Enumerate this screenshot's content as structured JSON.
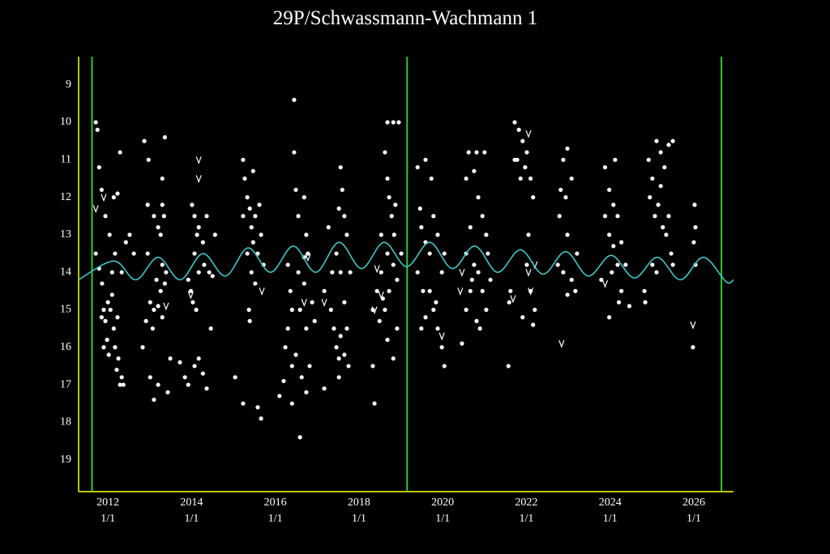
{
  "chart_data": {
    "type": "scatter",
    "title": "29P/Schwassmann-Wachmann 1",
    "xlim": [
      2011.3,
      2026.95
    ],
    "xticks": [
      {
        "value": 2012,
        "label": "2012\n1/1"
      },
      {
        "value": 2014,
        "label": "2014\n1/1"
      },
      {
        "value": 2016,
        "label": "2016\n1/1"
      },
      {
        "value": 2018,
        "label": "2018\n1/1"
      },
      {
        "value": 2020,
        "label": "2020\n1/1"
      },
      {
        "value": 2022,
        "label": "2022\n1/1"
      },
      {
        "value": 2024,
        "label": "2024\n1/1"
      },
      {
        "value": 2026,
        "label": "2026\n1/1"
      }
    ],
    "ylim": [
      8.25,
      19.85
    ],
    "y_inverted": true,
    "yticks": [
      9,
      10,
      11,
      12,
      13,
      14,
      15,
      16,
      17,
      18,
      19
    ],
    "grid": false,
    "axis_color": "#b8c800",
    "vlines": [
      2011.62,
      2019.15,
      2026.66
    ],
    "vline_color": "#2ec82e",
    "series": [
      {
        "marker": "dot",
        "color": "#ffffff",
        "x": [
          2011.71,
          2011.75,
          2011.79,
          2011.85,
          2011.71,
          2011.79,
          2011.86,
          2011.9,
          2011.94,
          2011.98,
          2012.02,
          2012.06,
          2012.1,
          2012.14,
          2012.17,
          2012.21,
          2012.25,
          2012.29,
          2012.33,
          2012.37,
          2011.94,
          2012.04,
          2012.14,
          2012.23,
          2012.29,
          2012.17,
          2012.33,
          2012.43,
          2012.1,
          2012.0,
          2011.9,
          2012.23,
          2011.85,
          2012.52,
          2012.62,
          2012.87,
          2012.97,
          2012.95,
          2013.1,
          2013.2,
          2013.3,
          2013.34,
          2013.26,
          2013.3,
          2013.36,
          2013.01,
          2013.07,
          2012.91,
          2012.83,
          2013.1,
          2013.2,
          2013.3,
          2013.39,
          2013.36,
          2013.3,
          2013.01,
          2013.1,
          2013.2,
          2013.43,
          2013.49,
          2013.26,
          2013.16,
          2012.95,
          2014.01,
          2014.07,
          2014.13,
          2014.07,
          2014.17,
          2014.27,
          2014.36,
          2014.42,
          2013.98,
          2014.03,
          2014.11,
          2013.92,
          2013.84,
          2013.92,
          2014.07,
          2014.17,
          2014.27,
          2014.36,
          2014.46,
          2014.56,
          2014.5,
          2014.17,
          2014.3,
          2013.72,
          2015.23,
          2015.27,
          2015.33,
          2015.39,
          2015.43,
          2015.47,
          2015.52,
          2015.58,
          2015.62,
          2015.66,
          2015.23,
          2015.33,
          2015.43,
          2015.39,
          2015.52,
          2015.58,
          2015.66,
          2015.23,
          2015.04,
          2015.72,
          2015.47,
          2015.37,
          2016.45,
          2016.45,
          2016.49,
          2016.55,
          2016.69,
          2016.74,
          2016.78,
          2016.3,
          2016.36,
          2016.4,
          2016.3,
          2016.24,
          2016.4,
          2016.49,
          2016.59,
          2016.69,
          2016.74,
          2016.63,
          2016.74,
          2016.82,
          2016.88,
          2016.94,
          2016.59,
          2016.4,
          2016.2,
          2016.1,
          2017.17,
          2016.55,
          2016.69,
          2017.56,
          2017.6,
          2017.65,
          2017.71,
          2017.52,
          2017.46,
          2017.36,
          2017.33,
          2017.4,
          2017.46,
          2017.52,
          2017.56,
          2017.65,
          2017.71,
          2017.75,
          2017.27,
          2017.17,
          2017.56,
          2017.79,
          2017.52,
          2017.65,
          2018.68,
          2018.82,
          2018.95,
          2018.62,
          2018.68,
          2018.72,
          2018.78,
          2018.84,
          2018.87,
          2018.68,
          2018.53,
          2018.43,
          2018.33,
          2018.49,
          2018.62,
          2018.72,
          2018.82,
          2018.91,
          2018.82,
          2018.33,
          2018.37,
          2018.53,
          2019.01,
          2018.91,
          2018.68,
          2018.57,
          2019.4,
          2019.59,
          2019.46,
          2019.49,
          2019.59,
          2019.69,
          2019.78,
          2019.88,
          2019.98,
          2019.69,
          2019.78,
          2019.49,
          2019.59,
          2019.88,
          2019.98,
          2020.04,
          2019.4,
          2019.53,
          2019.84,
          2019.73,
          2020.04,
          2020.62,
          2020.81,
          2021.0,
          2020.56,
          2020.75,
          2020.85,
          2020.95,
          2021.04,
          2020.66,
          2020.56,
          2020.75,
          2020.85,
          2020.95,
          2021.04,
          2020.66,
          2020.56,
          2020.81,
          2020.89,
          2021.14,
          2020.46,
          2021.08,
          2020.7,
          2021.72,
          2021.82,
          2021.91,
          2022.01,
          2021.78,
          2021.86,
          2021.97,
          2022.1,
          2022.16,
          2021.72,
          2022.01,
          2022.1,
          2021.59,
          2021.62,
          2021.91,
          2022.2,
          2022.16,
          2021.57,
          2022.05,
          2022.88,
          2022.98,
          2023.08,
          2022.94,
          2022.79,
          2022.98,
          2022.75,
          2022.88,
          2023.08,
          2023.17,
          2023.21,
          2022.98,
          2022.82,
          2023.88,
          2023.98,
          2024.08,
          2024.18,
          2023.88,
          2023.98,
          2024.08,
          2024.18,
          2024.27,
          2024.37,
          2024.04,
          2023.79,
          2024.27,
          2023.98,
          2024.21,
          2024.12,
          2024.46,
          2024.92,
          2025.01,
          2025.11,
          2025.21,
          2025.3,
          2025.4,
          2025.5,
          2024.95,
          2025.07,
          2025.15,
          2025.26,
          2025.34,
          2025.46,
          2025.01,
          2025.11,
          2025.4,
          2025.5,
          2024.82,
          2024.84,
          2025.21,
          2026.02,
          2026.04,
          2026.0,
          2025.98,
          2026.04
        ],
        "values": [
          10.0,
          10.2,
          11.2,
          11.8,
          13.5,
          13.9,
          14.3,
          15.0,
          15.3,
          15.8,
          16.2,
          15.0,
          14.6,
          15.5,
          16.0,
          16.6,
          16.3,
          17.0,
          16.8,
          17.0,
          12.5,
          13.0,
          12.0,
          11.9,
          10.8,
          13.5,
          14.0,
          13.2,
          14.0,
          14.8,
          16.0,
          15.2,
          15.2,
          13.0,
          13.5,
          10.5,
          11.0,
          12.2,
          12.5,
          12.8,
          12.2,
          12.5,
          13.0,
          13.8,
          14.3,
          14.8,
          15.5,
          15.3,
          16.0,
          15.0,
          14.9,
          15.2,
          14.0,
          10.4,
          11.5,
          16.8,
          17.4,
          17.0,
          17.2,
          16.3,
          14.5,
          14.2,
          13.5,
          12.2,
          12.5,
          13.0,
          13.5,
          12.8,
          13.2,
          12.5,
          14.0,
          14.5,
          14.8,
          15.0,
          14.2,
          16.8,
          17.0,
          16.5,
          16.3,
          16.7,
          17.1,
          15.5,
          13.0,
          14.1,
          14.0,
          13.8,
          16.4,
          11.0,
          11.5,
          12.0,
          12.3,
          12.8,
          13.2,
          12.5,
          13.5,
          12.2,
          13.0,
          12.5,
          13.5,
          14.0,
          15.3,
          14.3,
          17.6,
          17.9,
          17.5,
          16.8,
          13.8,
          11.3,
          15.0,
          9.4,
          10.8,
          11.8,
          12.5,
          12.0,
          13.0,
          13.5,
          13.8,
          14.5,
          15.0,
          15.5,
          16.0,
          16.5,
          16.2,
          15.0,
          14.3,
          15.5,
          16.8,
          17.2,
          16.5,
          14.8,
          15.3,
          18.4,
          17.5,
          16.9,
          17.3,
          17.1,
          14.0,
          13.6,
          11.2,
          11.8,
          12.5,
          13.0,
          12.3,
          13.5,
          14.0,
          15.0,
          15.5,
          16.0,
          16.3,
          15.7,
          14.8,
          15.5,
          16.5,
          12.8,
          14.5,
          14.0,
          14.0,
          16.8,
          16.2,
          10.0,
          10.0,
          10.0,
          10.8,
          11.5,
          12.0,
          12.5,
          13.0,
          12.2,
          13.5,
          14.0,
          14.5,
          15.0,
          15.3,
          15.0,
          14.5,
          13.8,
          15.5,
          16.3,
          16.5,
          17.5,
          13.0,
          13.5,
          14.2,
          15.8,
          14.7,
          11.2,
          11.0,
          12.3,
          12.8,
          13.2,
          13.5,
          12.5,
          13.0,
          14.0,
          14.5,
          15.0,
          15.5,
          15.2,
          15.5,
          16.0,
          16.5,
          14.0,
          14.5,
          14.8,
          11.5,
          13.5,
          10.8,
          10.8,
          10.8,
          11.5,
          11.3,
          12.0,
          12.5,
          13.0,
          12.8,
          13.5,
          13.8,
          14.0,
          14.5,
          15.0,
          14.5,
          15.0,
          15.3,
          15.5,
          14.2,
          15.9,
          13.5,
          14.2,
          10.0,
          10.2,
          10.5,
          10.8,
          11.0,
          11.5,
          11.2,
          11.5,
          12.0,
          11.0,
          13.8,
          14.5,
          14.8,
          14.5,
          15.2,
          15.0,
          15.4,
          16.5,
          13.0,
          11.0,
          10.7,
          11.5,
          12.0,
          12.5,
          13.0,
          13.8,
          14.0,
          14.2,
          14.5,
          13.5,
          14.6,
          11.8,
          11.2,
          11.8,
          12.2,
          12.5,
          12.5,
          13.0,
          13.3,
          13.8,
          13.2,
          13.8,
          14.0,
          14.2,
          14.5,
          15.2,
          14.8,
          11.0,
          14.9,
          11.0,
          11.5,
          10.5,
          10.8,
          11.2,
          10.6,
          10.5,
          12.0,
          12.5,
          12.2,
          12.8,
          13.0,
          13.5,
          13.8,
          14.0,
          12.5,
          13.8,
          14.5,
          14.8,
          11.7,
          12.2,
          12.8,
          13.2,
          16.0,
          13.8
        ]
      },
      {
        "marker": "v",
        "color": "#ffffff",
        "x": [
          2011.9,
          2011.71,
          2013.39,
          2014.17,
          2014.17,
          2013.98,
          2015.68,
          2016.69,
          2016.78,
          2017.17,
          2018.37,
          2018.53,
          2018.43,
          2019.98,
          2020.46,
          2020.42,
          2021.68,
          2022.05,
          2022.1,
          2022.2,
          2022.05,
          2022.84,
          2023.88,
          2025.98
        ],
        "values": [
          12.0,
          12.3,
          14.9,
          11.0,
          11.5,
          14.6,
          14.5,
          14.8,
          13.6,
          14.8,
          15.0,
          14.6,
          13.9,
          15.7,
          14.0,
          14.5,
          14.7,
          14.0,
          14.5,
          13.8,
          10.3,
          15.9,
          14.3,
          15.4
        ]
      },
      {
        "marker": "line",
        "color": "#3cc8c8",
        "x": [
          2011.3,
          2012.14,
          2012.67,
          2013.2,
          2013.73,
          2014.27,
          2014.81,
          2015.35,
          2015.89,
          2016.43,
          2016.97,
          2017.52,
          2018.06,
          2018.6,
          2019.14,
          2019.69,
          2020.23,
          2020.77,
          2021.31,
          2021.86,
          2022.4,
          2022.94,
          2023.48,
          2024.03,
          2024.58,
          2025.13,
          2025.68,
          2026.23,
          2026.77,
          2026.95
        ],
        "values": [
          14.2,
          13.7,
          14.2,
          13.6,
          14.2,
          13.5,
          14.1,
          13.35,
          14.0,
          13.3,
          14.0,
          13.2,
          13.9,
          13.2,
          13.85,
          13.2,
          13.9,
          13.3,
          14.0,
          13.4,
          14.05,
          13.45,
          14.1,
          13.55,
          14.15,
          13.6,
          14.2,
          13.6,
          14.25,
          14.2
        ]
      }
    ]
  }
}
